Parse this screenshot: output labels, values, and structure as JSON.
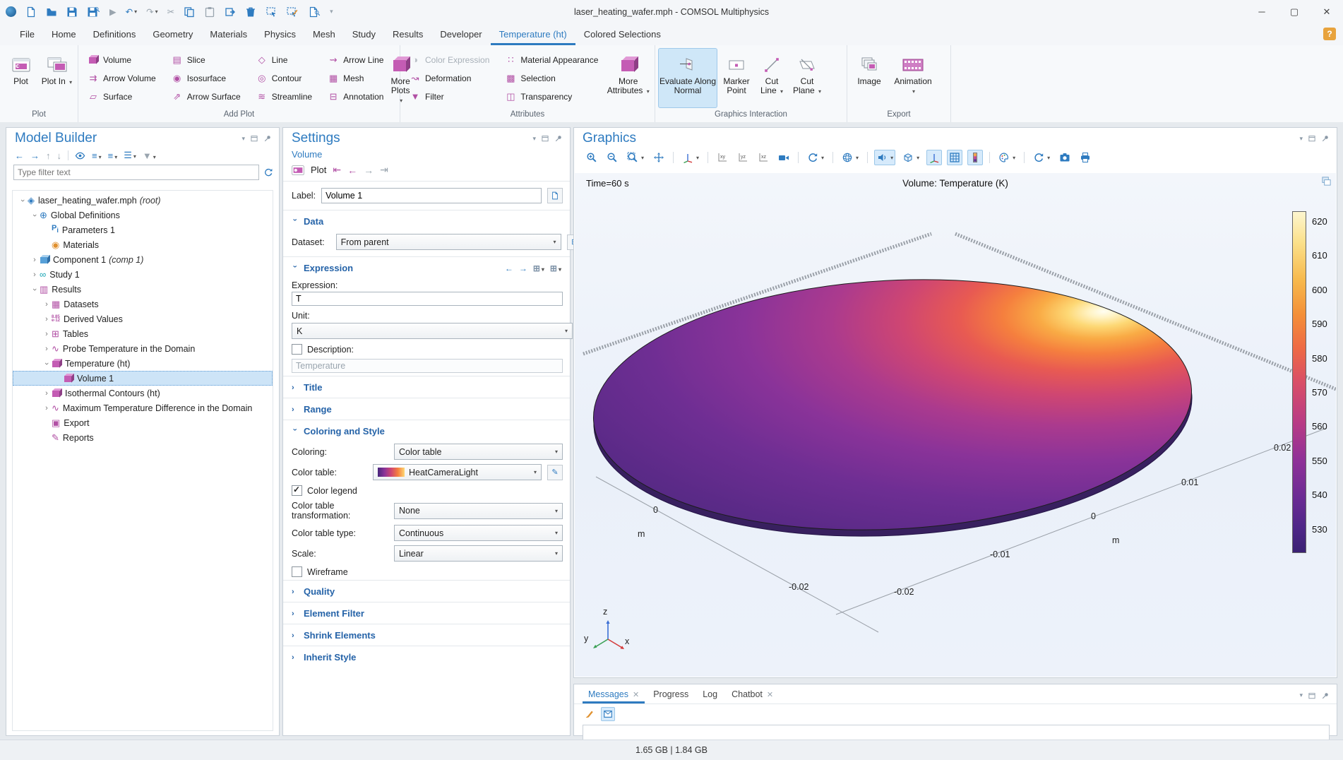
{
  "window": {
    "title": "laser_heating_wafer.mph - COMSOL Multiphysics"
  },
  "menubar": {
    "tabs": [
      "File",
      "Home",
      "Definitions",
      "Geometry",
      "Materials",
      "Physics",
      "Mesh",
      "Study",
      "Results",
      "Developer",
      "Temperature (ht)",
      "Colored Selections"
    ],
    "active": "Temperature (ht)",
    "help_label": "?"
  },
  "ribbon": {
    "plot": {
      "label": "Plot",
      "buttons": {
        "plot": "Plot",
        "plot_in": "Plot In"
      }
    },
    "add_plot": {
      "label": "Add Plot",
      "items": [
        "Volume",
        "Arrow Volume",
        "Surface",
        "Slice",
        "Isosurface",
        "Arrow Surface",
        "Line",
        "Contour",
        "Streamline",
        "Arrow Line",
        "Mesh",
        "Annotation"
      ],
      "more": "More Plots"
    },
    "attributes": {
      "label": "Attributes",
      "items": [
        "Color Expression",
        "Deformation",
        "Filter",
        "Material Appearance",
        "Selection",
        "Transparency"
      ],
      "more": "More Attributes"
    },
    "graphics_interaction": {
      "label": "Graphics Interaction",
      "evaluate": "Evaluate Along Normal",
      "marker": "Marker Point",
      "cut_line": "Cut Line",
      "cut_plane": "Cut Plane"
    },
    "export": {
      "label": "Export",
      "image": "Image",
      "animation": "Animation"
    }
  },
  "model_builder": {
    "title": "Model Builder",
    "filter_placeholder": "Type filter text",
    "tree": [
      {
        "depth": 0,
        "exp": "open",
        "icon": "model-root",
        "label": "laser_heating_wafer.mph",
        "suffix": "(root)"
      },
      {
        "depth": 1,
        "exp": "open",
        "icon": "global-definitions",
        "label": "Global Definitions"
      },
      {
        "depth": 2,
        "exp": "none",
        "icon": "parameters",
        "label": "Parameters 1"
      },
      {
        "depth": 2,
        "exp": "none",
        "icon": "materials",
        "label": "Materials"
      },
      {
        "depth": 1,
        "exp": "closed",
        "icon": "component",
        "label": "Component 1",
        "suffix": "(comp 1)"
      },
      {
        "depth": 1,
        "exp": "closed",
        "icon": "study",
        "label": "Study 1"
      },
      {
        "depth": 1,
        "exp": "open",
        "icon": "results",
        "label": "Results"
      },
      {
        "depth": 2,
        "exp": "closed",
        "icon": "datasets",
        "label": "Datasets"
      },
      {
        "depth": 2,
        "exp": "closed",
        "icon": "derived-values",
        "label": "Derived Values"
      },
      {
        "depth": 2,
        "exp": "closed",
        "icon": "tables",
        "label": "Tables"
      },
      {
        "depth": 2,
        "exp": "closed",
        "icon": "probe-plot",
        "label": "Probe Temperature in the Domain"
      },
      {
        "depth": 2,
        "exp": "open",
        "icon": "plot-group-3d",
        "label": "Temperature (ht)"
      },
      {
        "depth": 3,
        "exp": "none",
        "icon": "volume-plot",
        "label": "Volume 1",
        "selected": true
      },
      {
        "depth": 2,
        "exp": "closed",
        "icon": "plot-group-3d",
        "label": "Isothermal Contours (ht)"
      },
      {
        "depth": 2,
        "exp": "closed",
        "icon": "plot-1d",
        "label": "Maximum Temperature Difference in the Domain"
      },
      {
        "depth": 2,
        "exp": "none",
        "icon": "export",
        "label": "Export"
      },
      {
        "depth": 2,
        "exp": "none",
        "icon": "reports",
        "label": "Reports"
      }
    ]
  },
  "settings": {
    "title": "Settings",
    "subtitle": "Volume",
    "toolbar": {
      "plot_label": "Plot"
    },
    "label_field": {
      "label": "Label:",
      "value": "Volume 1"
    },
    "data": {
      "title": "Data",
      "dataset_label": "Dataset:",
      "dataset_value": "From parent"
    },
    "expression": {
      "title": "Expression",
      "expression_label": "Expression:",
      "expression_value": "T",
      "unit_label": "Unit:",
      "unit_value": "K",
      "description_label": "Description:",
      "description_placeholder": "Temperature"
    },
    "title_section": {
      "title": "Title"
    },
    "range_section": {
      "title": "Range"
    },
    "coloring": {
      "title": "Coloring and Style",
      "coloring_label": "Coloring:",
      "coloring_value": "Color table",
      "color_table_label": "Color table:",
      "color_table_value": "HeatCameraLight",
      "color_legend_label": "Color legend",
      "transform_label": "Color table transformation:",
      "transform_value": "None",
      "type_label": "Color table type:",
      "type_value": "Continuous",
      "scale_label": "Scale:",
      "scale_value": "Linear",
      "wireframe_label": "Wireframe"
    },
    "quality": {
      "title": "Quality"
    },
    "element_filter": {
      "title": "Element Filter"
    },
    "shrink_elements": {
      "title": "Shrink Elements"
    },
    "inherit_style": {
      "title": "Inherit Style"
    }
  },
  "graphics": {
    "title": "Graphics",
    "time_label": "Time=60 s",
    "plot_title": "Volume: Temperature (K)",
    "colorbar": {
      "ticks": [
        "620",
        "610",
        "600",
        "590",
        "580",
        "570",
        "560",
        "550",
        "540",
        "530"
      ]
    },
    "axis_labels": [
      {
        "text": "0"
      },
      {
        "text": "m"
      },
      {
        "text": "-0.02"
      },
      {
        "text": "-0.02"
      },
      {
        "text": "-0.01"
      },
      {
        "text": "0"
      },
      {
        "text": "m"
      },
      {
        "text": "0.01"
      },
      {
        "text": "0.02"
      }
    ],
    "triad": {
      "x": "x",
      "y": "y",
      "z": "z"
    },
    "accent_hot": "#fdd875",
    "accent_cold": "#46257b"
  },
  "messages": {
    "tabs": [
      {
        "label": "Messages",
        "closable": true,
        "active": true
      },
      {
        "label": "Progress"
      },
      {
        "label": "Log"
      },
      {
        "label": "Chatbot",
        "closable": true
      }
    ]
  },
  "status": {
    "memory": "1.65 GB | 1.84 GB"
  }
}
